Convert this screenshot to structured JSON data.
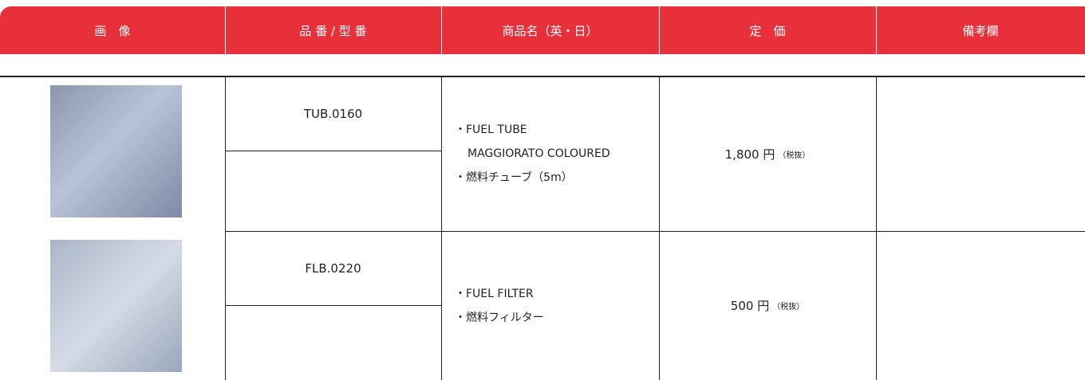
{
  "header": {
    "columns": [
      "画　像",
      "品 番 / 型 番",
      "商品名（英・日）",
      "定　価",
      "備考欄"
    ]
  },
  "table": {
    "rows": [
      {
        "code": "TUB.0160",
        "name_lines": [
          "・FUEL TUBE",
          "MAGGIORATO COLOURED",
          "・燃料チューブ（5m）"
        ],
        "price": "1,800 円",
        "tax_note": "（税抜）"
      },
      {
        "code": "FLB.0220",
        "name_lines": [
          "・FUEL FILTER",
          "・燃料フィルター"
        ],
        "price": "500 円",
        "tax_note": "（税抜）"
      }
    ]
  }
}
